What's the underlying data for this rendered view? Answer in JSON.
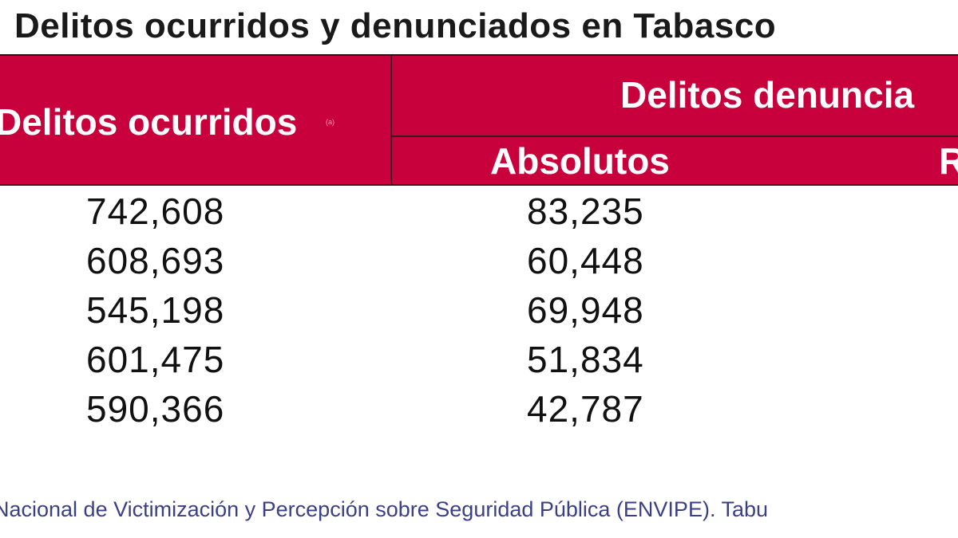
{
  "title": "Delitos ocurridos y denunciados en Tabasco",
  "header": {
    "occurred_label": "Delitos ocurridos",
    "occurred_note": "(a)",
    "reported_label": "Delitos denuncia",
    "sub_absolute": "Absolutos",
    "sub_relative": "R"
  },
  "rows": [
    {
      "occurred": "742,608",
      "absolute": "83,235"
    },
    {
      "occurred": "608,693",
      "absolute": "60,448"
    },
    {
      "occurred": "545,198",
      "absolute": "69,948"
    },
    {
      "occurred": "601,475",
      "absolute": "51,834"
    },
    {
      "occurred": "590,366",
      "absolute": "42,787"
    }
  ],
  "source": "Nacional de Victimización y Percepción sobre Seguridad Pública (ENVIPE). Tabu",
  "colors": {
    "header_bg": "#c8003b",
    "header_text": "#ffffff",
    "source_text": "#3b3f86"
  }
}
